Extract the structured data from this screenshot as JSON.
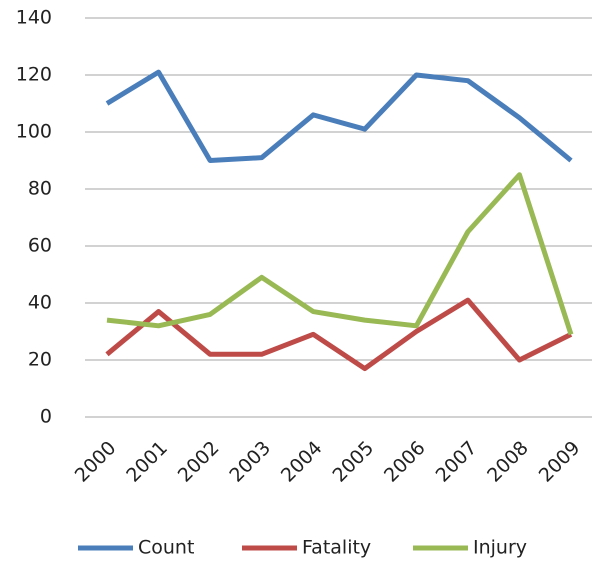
{
  "chart_data": {
    "type": "line",
    "categories": [
      "2000",
      "2001",
      "2002",
      "2003",
      "2004",
      "2005",
      "2006",
      "2007",
      "2008",
      "2009"
    ],
    "series": [
      {
        "name": "Count",
        "color": "#4a7ebb",
        "values": [
          110,
          121,
          90,
          91,
          106,
          101,
          120,
          118,
          105,
          90
        ]
      },
      {
        "name": "Fatality",
        "color": "#be4b48",
        "values": [
          22,
          37,
          22,
          22,
          29,
          17,
          30,
          41,
          20,
          29
        ]
      },
      {
        "name": "Injury",
        "color": "#98b954",
        "values": [
          34,
          32,
          36,
          49,
          37,
          34,
          32,
          65,
          85,
          29
        ]
      }
    ],
    "ylim": [
      0,
      140
    ],
    "yticks": [
      0,
      20,
      40,
      60,
      80,
      100,
      120,
      140
    ],
    "grid": true,
    "legend": "bottom"
  }
}
